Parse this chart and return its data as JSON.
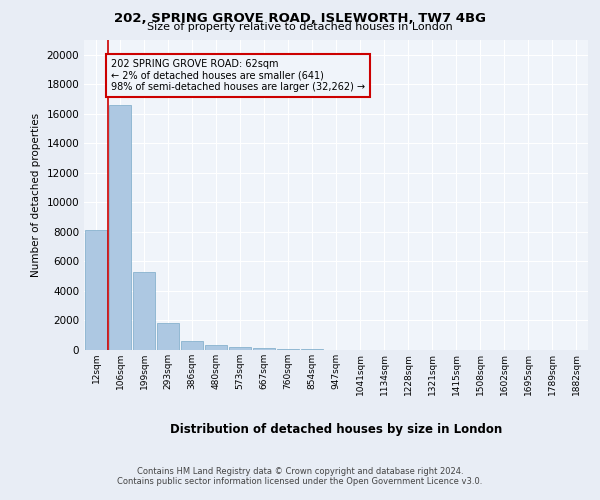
{
  "title1": "202, SPRING GROVE ROAD, ISLEWORTH, TW7 4BG",
  "title2": "Size of property relative to detached houses in London",
  "xlabel": "Distribution of detached houses by size in London",
  "ylabel": "Number of detached properties",
  "categories": [
    "12sqm",
    "106sqm",
    "199sqm",
    "293sqm",
    "386sqm",
    "480sqm",
    "573sqm",
    "667sqm",
    "760sqm",
    "854sqm",
    "947sqm",
    "1041sqm",
    "1134sqm",
    "1228sqm",
    "1321sqm",
    "1415sqm",
    "1508sqm",
    "1602sqm",
    "1695sqm",
    "1789sqm",
    "1882sqm"
  ],
  "values": [
    8100,
    16600,
    5300,
    1800,
    600,
    350,
    200,
    130,
    80,
    50,
    30,
    20,
    15,
    10,
    8,
    5,
    4,
    3,
    2,
    2,
    1
  ],
  "bar_color": "#adc8e2",
  "bar_edge_color": "#7aaac8",
  "annotation_text_line1": "202 SPRING GROVE ROAD: 62sqm",
  "annotation_text_line2": "← 2% of detached houses are smaller (641)",
  "annotation_text_line3": "98% of semi-detached houses are larger (32,262) →",
  "ref_line_x": 0.5,
  "footer1": "Contains HM Land Registry data © Crown copyright and database right 2024.",
  "footer2": "Contains public sector information licensed under the Open Government Licence v3.0.",
  "ylim": [
    0,
    21000
  ],
  "yticks": [
    0,
    2000,
    4000,
    6000,
    8000,
    10000,
    12000,
    14000,
    16000,
    18000,
    20000
  ],
  "bg_color": "#e8edf5",
  "plot_bg_color": "#f0f4fa",
  "grid_color": "#ffffff",
  "annotation_box_facecolor": "#f0f4fa",
  "annotation_box_edgecolor": "#cc0000",
  "ref_line_color": "#cc0000"
}
